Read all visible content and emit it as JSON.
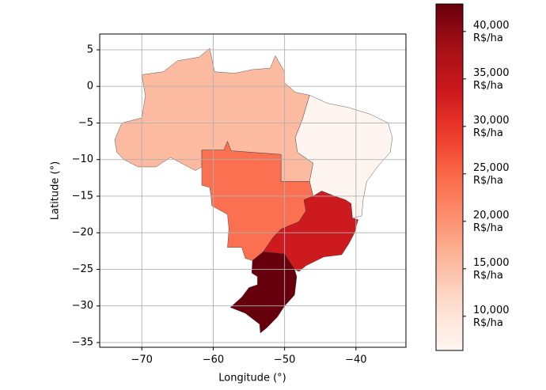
{
  "chart_data": {
    "type": "choropleth",
    "xlabel": "Longitude (°)",
    "ylabel": "Latitude (°)",
    "xlim": [
      -75.9,
      -33
    ],
    "ylim": [
      -35.65,
      7.16
    ],
    "xticks": [
      {
        "value": -70,
        "label": "−70"
      },
      {
        "value": -60,
        "label": "−60"
      },
      {
        "value": -50,
        "label": "−50"
      },
      {
        "value": -40,
        "label": "−40"
      }
    ],
    "yticks": [
      5,
      0,
      {
        "value": -5,
        "label": "−5"
      },
      {
        "value": -10,
        "label": "−10"
      },
      {
        "value": -15,
        "label": "−15"
      },
      {
        "value": -20,
        "label": "−20"
      },
      {
        "value": -25,
        "label": "−25"
      },
      {
        "value": -30,
        "label": "−30"
      },
      {
        "value": -35,
        "label": "−35"
      }
    ],
    "grid": true,
    "colormap": "Reds",
    "clim": [
      6400,
      42900
    ],
    "cticks": [
      {
        "value": 10000,
        "label": "10,000\nR$/ha"
      },
      {
        "value": 15000,
        "label": "15,000\nR$/ha"
      },
      {
        "value": 20000,
        "label": "20,000\nR$/ha"
      },
      {
        "value": 25000,
        "label": "25,000\nR$/ha"
      },
      {
        "value": 30000,
        "label": "30,000\nR$/ha"
      },
      {
        "value": 35000,
        "label": "35,000\nR$/ha"
      },
      {
        "value": 40000,
        "label": "40,000\nR$/ha"
      }
    ],
    "values": [
      15500,
      6400,
      24000,
      33500,
      42900
    ]
  }
}
